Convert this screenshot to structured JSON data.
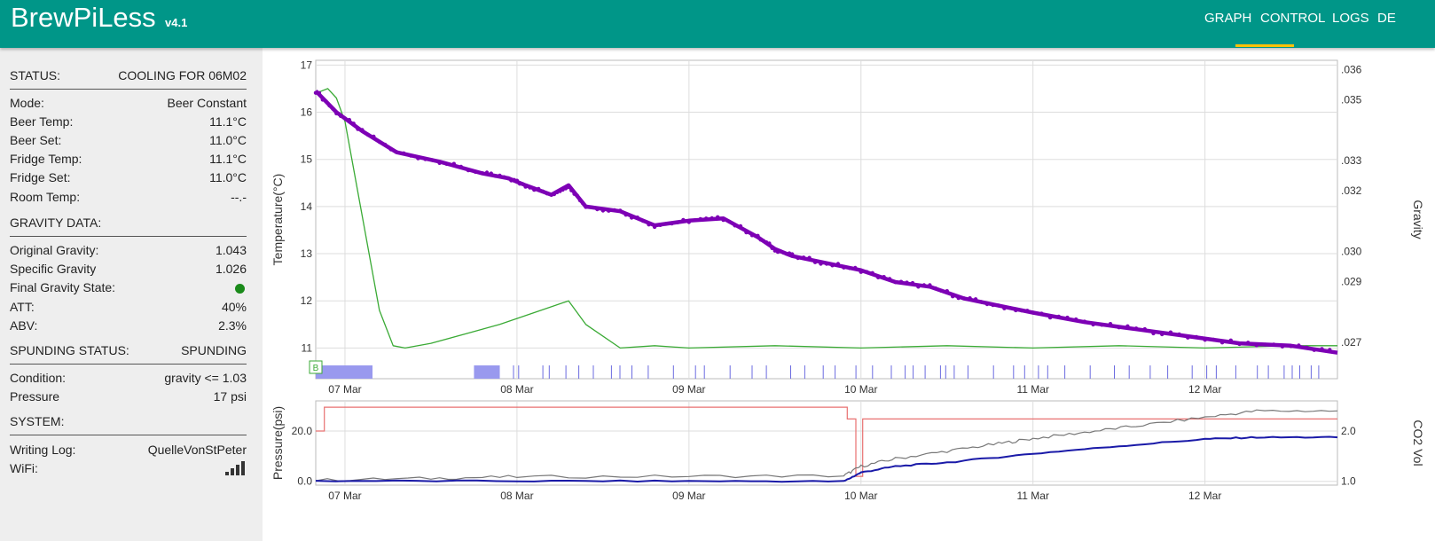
{
  "app": {
    "title": "BrewPiLess",
    "version": "v4.1"
  },
  "nav": [
    {
      "label": "GRAPH",
      "active": true
    },
    {
      "label": "CONTROL"
    },
    {
      "label": "LOGS"
    },
    {
      "label": "DE"
    }
  ],
  "colors": {
    "topbar": "#009688",
    "active_tab_underline": "#ffc107",
    "sidebar": "#eeeeee",
    "gravity_state_ok": "#1a8a1a"
  },
  "status": {
    "label": "STATUS:",
    "value": "COOLING FOR 06M02"
  },
  "temps": [
    {
      "label": "Mode:",
      "value": "Beer Constant"
    },
    {
      "label": "Beer Temp:",
      "value": "11.1°C"
    },
    {
      "label": "Beer Set:",
      "value": "11.0°C"
    },
    {
      "label": "Fridge Temp:",
      "value": "11.1°C"
    },
    {
      "label": "Fridge Set:",
      "value": "11.0°C"
    },
    {
      "label": "Room Temp:",
      "value": "--.-"
    }
  ],
  "gravity": {
    "header": "GRAVITY DATA:",
    "rows": [
      {
        "label": "Original Gravity:",
        "value": "1.043"
      },
      {
        "label": "Specific Gravity",
        "value": "1.026"
      },
      {
        "label": "Final Gravity State:",
        "value": ""
      },
      {
        "label": "ATT:",
        "value": "40%"
      },
      {
        "label": "ABV:",
        "value": "2.3%"
      }
    ]
  },
  "spunding": {
    "header": "SPUNDING STATUS:",
    "header_value": "SPUNDING",
    "rows": [
      {
        "label": "Condition:",
        "value": "gravity <= 1.03"
      },
      {
        "label": "Pressure",
        "value": "17 psi"
      }
    ]
  },
  "system": {
    "header": "SYSTEM:",
    "rows": [
      {
        "label": "Writing Log:",
        "value": "QuelleVonStPeter"
      },
      {
        "label": "WiFi:",
        "value": ""
      }
    ],
    "wifi_icon": "wifi-signal-icon"
  },
  "chart_data": [
    {
      "type": "line",
      "xlabel": "",
      "ylabel": "Temperature(°C)",
      "y2label": "Gravity",
      "x_ticks": [
        "07 Mar",
        "08 Mar",
        "09 Mar",
        "10 Mar",
        "11 Mar",
        "12 Mar"
      ],
      "xlim": [
        -0.17,
        5.77
      ],
      "ylim": [
        10.35,
        17.1
      ],
      "y_ticks": [
        17,
        16,
        15,
        14,
        13,
        12,
        11
      ],
      "y2lim": [
        1.0258,
        1.0363
      ],
      "y2_ticks": [
        ".036",
        ".035",
        ".033",
        ".032",
        ".030",
        ".029",
        ".027"
      ],
      "grid": true,
      "annotation_marker": "B",
      "series": [
        {
          "color": "#3aaa35",
          "x": [
            -0.17,
            -0.1,
            -0.05,
            0.0,
            0.1,
            0.2,
            0.28,
            0.35,
            0.5,
            0.7,
            0.9,
            1.1,
            1.3,
            1.4,
            1.6,
            1.8,
            2.0,
            2.5,
            3.0,
            3.5,
            4.0,
            4.5,
            5.0,
            5.5,
            5.77
          ],
          "y": [
            16.4,
            16.5,
            16.3,
            15.8,
            13.8,
            11.8,
            11.05,
            11.0,
            11.1,
            11.3,
            11.5,
            11.75,
            12.0,
            11.5,
            11.0,
            11.05,
            11.0,
            11.05,
            11.0,
            11.05,
            11.0,
            11.05,
            11.0,
            11.05,
            11.05
          ]
        },
        {
          "color": "#7d00b5",
          "x": [
            -0.17,
            -0.05,
            0.1,
            0.3,
            0.55,
            0.8,
            0.95,
            1.05,
            1.2,
            1.3,
            1.4,
            1.6,
            1.8,
            2.0,
            2.2,
            2.4,
            2.5,
            2.6,
            2.8,
            3.0,
            3.2,
            3.4,
            3.6,
            3.8,
            4.0,
            4.3,
            4.6,
            4.9,
            5.2,
            5.5,
            5.77
          ],
          "y": [
            16.45,
            16.0,
            15.6,
            15.15,
            14.95,
            14.7,
            14.6,
            14.45,
            14.25,
            14.45,
            14.0,
            13.9,
            13.6,
            13.7,
            13.75,
            13.35,
            13.1,
            12.95,
            12.8,
            12.65,
            12.4,
            12.3,
            12.05,
            11.9,
            11.75,
            11.55,
            11.4,
            11.25,
            11.1,
            11.05,
            10.9
          ]
        }
      ]
    },
    {
      "type": "line",
      "xlabel": "",
      "ylabel": "Pressure(psi)",
      "y2label": "CO2 Vol",
      "x_ticks": [
        "07 Mar",
        "08 Mar",
        "09 Mar",
        "10 Mar",
        "11 Mar",
        "12 Mar"
      ],
      "xlim": [
        -0.17,
        5.77
      ],
      "ylim": [
        -1.5,
        32
      ],
      "y_ticks": [
        "20.0",
        "0.0"
      ],
      "y2lim": [
        0.925,
        2.6
      ],
      "y2_ticks": [
        "2.0",
        "1.0"
      ],
      "grid": true,
      "series": [
        {
          "color": "#e87070",
          "x": [
            -0.17,
            -0.12,
            -0.12,
            2.92,
            2.92,
            2.97,
            2.97,
            3.01,
            3.01,
            5.77
          ],
          "y": [
            20.0,
            20.0,
            29.5,
            29.5,
            24.8,
            24.8,
            2.0,
            2.0,
            24.8,
            24.8
          ]
        },
        {
          "color": "#777777",
          "x": [
            -0.17,
            0.5,
            1.0,
            2.0,
            2.9,
            3.0,
            3.2,
            3.5,
            3.8,
            4.0,
            4.3,
            4.6,
            5.0,
            5.3,
            5.77
          ],
          "y": [
            0.5,
            1.2,
            1.8,
            2.0,
            2.2,
            6.0,
            9.0,
            12.0,
            15.0,
            17.0,
            19.5,
            22.0,
            25.5,
            28.0,
            28.0
          ]
        },
        {
          "color": "#1a1aa8",
          "x": [
            -0.17,
            1.0,
            2.0,
            2.9,
            3.0,
            3.2,
            3.5,
            4.0,
            4.5,
            5.0,
            5.3,
            5.77
          ],
          "y": [
            0.2,
            0.1,
            0.1,
            0.0,
            3.5,
            6.0,
            7.5,
            11.0,
            14.0,
            16.8,
            17.5,
            17.5
          ]
        }
      ]
    }
  ]
}
